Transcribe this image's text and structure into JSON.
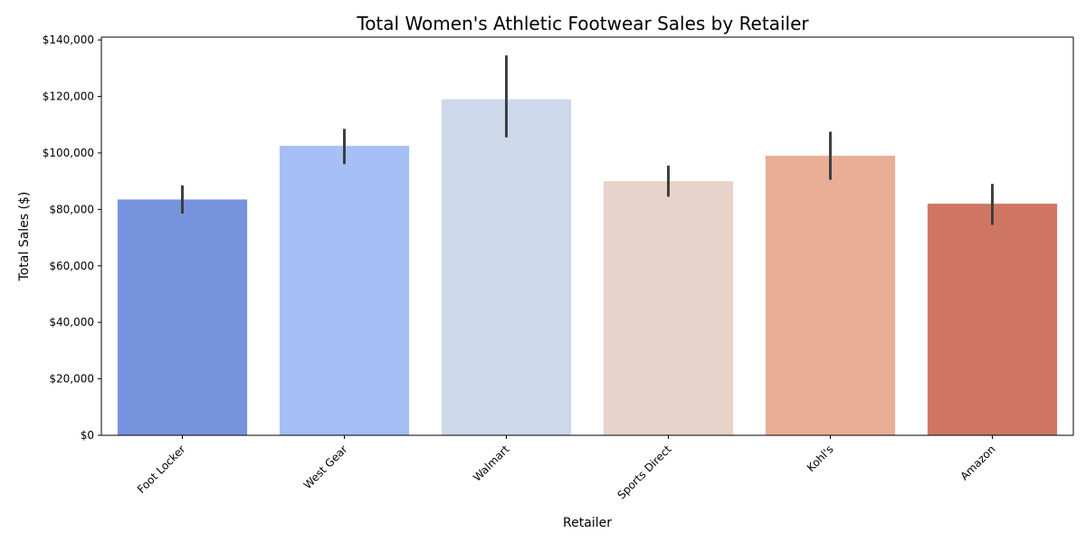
{
  "chart_data": {
    "type": "bar",
    "title": "Total Women's Athletic Footwear Sales by Retailer",
    "xlabel": "Retailer",
    "ylabel": "Total Sales ($)",
    "ylim": [
      0,
      141000
    ],
    "yticks": [
      0,
      20000,
      40000,
      60000,
      80000,
      100000,
      120000,
      140000
    ],
    "ytick_labels": [
      "$0",
      "$20,000",
      "$40,000",
      "$60,000",
      "$80,000",
      "$100,000",
      "$120,000",
      "$140,000"
    ],
    "categories": [
      "Foot Locker",
      "West Gear",
      "Walmart",
      "Sports Direct",
      "Kohl's",
      "Amazon"
    ],
    "values": [
      83500,
      102500,
      119000,
      90000,
      99000,
      82000
    ],
    "error_low": [
      78500,
      96000,
      105500,
      84500,
      90500,
      74500
    ],
    "error_high": [
      88500,
      108500,
      134500,
      95500,
      107500,
      89000
    ],
    "colors": [
      "#7893dd",
      "#a6bff4",
      "#cdd8eb",
      "#e7d3c9",
      "#e9ae96",
      "#cf7663"
    ],
    "error_bar_color": "#3f3f3f",
    "grid": false,
    "legend": "none"
  }
}
